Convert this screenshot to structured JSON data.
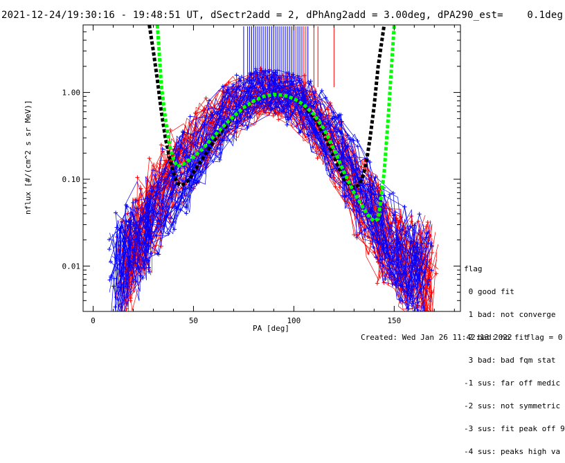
{
  "chart_data": {
    "type": "scatter",
    "title": "2021-12-24/19:30:16 - 19:48:51 UT, dSectr2add = 2, dPhAng2add = 3.00deg, dPA290_est=    0.1deg",
    "xlabel": "PA [deg]",
    "ylabel": "nflux [#/(cm^2 s sr MeV)]",
    "x_ticks": [
      "0",
      "50",
      "100",
      "150"
    ],
    "y_ticks": [
      "0.01",
      "0.10",
      "1.00"
    ],
    "xlim": [
      -5,
      183
    ],
    "ylim": [
      0.003,
      6
    ],
    "yscale": "log",
    "series": [
      {
        "color": "#ff0000",
        "marker": "+",
        "x": [
          15,
          18,
          22,
          26,
          30,
          36,
          42,
          48,
          55,
          62,
          70,
          78,
          84,
          90,
          96,
          102,
          108,
          115,
          122,
          128,
          134,
          140,
          145,
          150,
          155,
          160,
          165,
          168
        ],
        "y": [
          0.008,
          0.012,
          0.02,
          0.03,
          0.05,
          0.08,
          0.12,
          0.2,
          0.32,
          0.48,
          0.68,
          0.88,
          0.97,
          0.98,
          0.9,
          0.75,
          0.55,
          0.35,
          0.2,
          0.11,
          0.06,
          0.035,
          0.02,
          0.015,
          0.012,
          0.01,
          0.008,
          0.009
        ]
      },
      {
        "color": "#0000ff",
        "marker": "+",
        "x": [
          12,
          15,
          20,
          25,
          30,
          38,
          45,
          52,
          60,
          68,
          75,
          82,
          88,
          94,
          100,
          106,
          112,
          120,
          128,
          135,
          142,
          148,
          155,
          160,
          165
        ],
        "y": [
          0.007,
          0.01,
          0.015,
          0.025,
          0.04,
          0.07,
          0.12,
          0.2,
          0.35,
          0.55,
          0.78,
          0.95,
          1.0,
          0.97,
          0.85,
          0.65,
          0.45,
          0.25,
          0.12,
          0.06,
          0.035,
          0.02,
          0.013,
          0.01,
          0.008
        ]
      },
      {
        "color": "#00ff00",
        "style": "dashed",
        "x": [
          32,
          34,
          36,
          38,
          40,
          42,
          45,
          50,
          55,
          60,
          65,
          70,
          75,
          80,
          85,
          90,
          95,
          100,
          105,
          110,
          115,
          120,
          125,
          130,
          135,
          138,
          140,
          142,
          143,
          145,
          147,
          150
        ],
        "y": [
          6,
          1.2,
          0.5,
          0.25,
          0.17,
          0.14,
          0.15,
          0.18,
          0.23,
          0.31,
          0.41,
          0.53,
          0.67,
          0.8,
          0.9,
          0.95,
          0.93,
          0.85,
          0.72,
          0.56,
          0.38,
          0.22,
          0.12,
          0.07,
          0.045,
          0.036,
          0.033,
          0.035,
          0.05,
          0.12,
          0.5,
          6
        ]
      },
      {
        "color": "#000000",
        "style": "dashed",
        "x": [
          28,
          30,
          32,
          34,
          36,
          38,
          40,
          42,
          44,
          46,
          48,
          50,
          55,
          60,
          65,
          70,
          75,
          80,
          85,
          90,
          95,
          100,
          105,
          110,
          115,
          120,
          125,
          128,
          130,
          132,
          134,
          136,
          138,
          140,
          142,
          145
        ],
        "y": [
          6,
          3,
          1.4,
          0.6,
          0.3,
          0.18,
          0.12,
          0.09,
          0.085,
          0.09,
          0.1,
          0.12,
          0.18,
          0.27,
          0.38,
          0.52,
          0.66,
          0.8,
          0.9,
          0.95,
          0.93,
          0.85,
          0.7,
          0.52,
          0.33,
          0.18,
          0.1,
          0.085,
          0.08,
          0.085,
          0.1,
          0.15,
          0.3,
          0.7,
          2,
          6
        ]
      }
    ],
    "fit_flag_lines_x": [
      75,
      77,
      78,
      79,
      80,
      81,
      82,
      83,
      84,
      85,
      86,
      87,
      88,
      89,
      90,
      91,
      92,
      93,
      94,
      95,
      96,
      97,
      98,
      99,
      100,
      101,
      102,
      103,
      104,
      105,
      106,
      107,
      110,
      112,
      120
    ],
    "legend_position": "bottom-right"
  },
  "legend": {
    "title": "flag",
    "entries": [
      " 0 good fit",
      " 1 bad: not converge",
      " 2 bad: no fit",
      " 3 bad: bad fqm stat",
      "-1 sus: far off medic",
      "-2 sus: not symmetric",
      "-3 sus: fit peak off 9",
      "-4 sus: peaks high va"
    ]
  },
  "footer": "Created: Wed Jan 26 11:42:13 2022   flag = 0"
}
